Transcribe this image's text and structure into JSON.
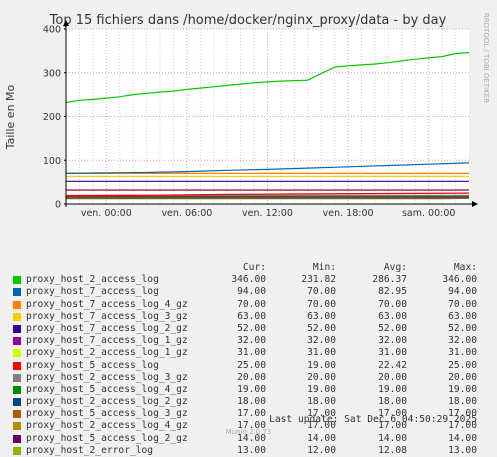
{
  "chart_data": {
    "type": "line",
    "title": "Top 15 fichiers dans /home/docker/nginx_proxy/data - by day",
    "ylabel": "Taille en Mo",
    "xlabel": "",
    "ylim": [
      0,
      400
    ],
    "yticks": [
      0,
      100,
      200,
      300,
      400
    ],
    "xlim": [
      0,
      30
    ],
    "xticks": [
      {
        "x": 3,
        "label": "ven. 00:00"
      },
      {
        "x": 9,
        "label": "ven. 06:00"
      },
      {
        "x": 15,
        "label": "ven. 12:00"
      },
      {
        "x": 21,
        "label": "ven. 18:00"
      },
      {
        "x": 27,
        "label": "sam. 00:00"
      }
    ],
    "grid": true,
    "legend_position": "bottom",
    "series": [
      {
        "name": "proxy_host_2_access_log",
        "color": "#00cc00",
        "cur": "346.00",
        "min": "231.82",
        "avg": "286.37",
        "max": "346.00",
        "points": [
          [
            0,
            232
          ],
          [
            1,
            237
          ],
          [
            2,
            239
          ],
          [
            3,
            242
          ],
          [
            4,
            245
          ],
          [
            5,
            250
          ],
          [
            6,
            253
          ],
          [
            7,
            256
          ],
          [
            8,
            258
          ],
          [
            9,
            262
          ],
          [
            10,
            265
          ],
          [
            11,
            268
          ],
          [
            12,
            271
          ],
          [
            13,
            274
          ],
          [
            14,
            277
          ],
          [
            15,
            279
          ],
          [
            16,
            281
          ],
          [
            17,
            282
          ],
          [
            18,
            283
          ],
          [
            19,
            298
          ],
          [
            20,
            313
          ],
          [
            21,
            316
          ],
          [
            22,
            318
          ],
          [
            23,
            320
          ],
          [
            24,
            323
          ],
          [
            25,
            327
          ],
          [
            26,
            331
          ],
          [
            27,
            334
          ],
          [
            28,
            337
          ],
          [
            29,
            344
          ],
          [
            30,
            346
          ]
        ]
      },
      {
        "name": "proxy_host_7_access_log",
        "color": "#0066b3",
        "cur": "94.00",
        "min": "70.00",
        "avg": "82.95",
        "max": "94.00",
        "points": [
          [
            0,
            70
          ],
          [
            3,
            71
          ],
          [
            6,
            72
          ],
          [
            9,
            74
          ],
          [
            12,
            77
          ],
          [
            15,
            79
          ],
          [
            18,
            82
          ],
          [
            21,
            85
          ],
          [
            24,
            88
          ],
          [
            27,
            91
          ],
          [
            30,
            94
          ]
        ]
      },
      {
        "name": "proxy_host_7_access_log_4_gz",
        "color": "#ff8000",
        "cur": "70.00",
        "min": "70.00",
        "avg": "70.00",
        "max": "70.00",
        "points": [
          [
            0,
            70
          ],
          [
            30,
            70
          ]
        ]
      },
      {
        "name": "proxy_host_7_access_log_3_gz",
        "color": "#ffcc00",
        "cur": "63.00",
        "min": "63.00",
        "avg": "63.00",
        "max": "63.00",
        "points": [
          [
            0,
            63
          ],
          [
            30,
            63
          ]
        ]
      },
      {
        "name": "proxy_host_7_access_log_2_gz",
        "color": "#330099",
        "cur": "52.00",
        "min": "52.00",
        "avg": "52.00",
        "max": "52.00",
        "points": [
          [
            0,
            52
          ],
          [
            30,
            52
          ]
        ]
      },
      {
        "name": "proxy_host_7_access_log_1_gz",
        "color": "#990099",
        "cur": "32.00",
        "min": "32.00",
        "avg": "32.00",
        "max": "32.00",
        "points": [
          [
            0,
            32
          ],
          [
            30,
            32
          ]
        ]
      },
      {
        "name": "proxy_host_2_access_log_1_gz",
        "color": "#ccff00",
        "cur": "31.00",
        "min": "31.00",
        "avg": "31.00",
        "max": "31.00",
        "points": [
          [
            0,
            31
          ],
          [
            30,
            31
          ]
        ]
      },
      {
        "name": "proxy_host_5_access_log",
        "color": "#ff0000",
        "cur": "25.00",
        "min": "19.00",
        "avg": "22.42",
        "max": "25.00",
        "points": [
          [
            0,
            19
          ],
          [
            6,
            20
          ],
          [
            12,
            22
          ],
          [
            18,
            23
          ],
          [
            24,
            24
          ],
          [
            30,
            25
          ]
        ]
      },
      {
        "name": "proxy_host_2_access_log_3_gz",
        "color": "#808080",
        "cur": "20.00",
        "min": "20.00",
        "avg": "20.00",
        "max": "20.00",
        "points": [
          [
            0,
            20
          ],
          [
            30,
            20
          ]
        ]
      },
      {
        "name": "proxy_host_5_access_log_4_gz",
        "color": "#008f00",
        "cur": "19.00",
        "min": "19.00",
        "avg": "19.00",
        "max": "19.00",
        "points": [
          [
            0,
            19
          ],
          [
            30,
            19
          ]
        ]
      },
      {
        "name": "proxy_host_2_access_log_2_gz",
        "color": "#00487d",
        "cur": "18.00",
        "min": "18.00",
        "avg": "18.00",
        "max": "18.00",
        "points": [
          [
            0,
            18
          ],
          [
            30,
            18
          ]
        ]
      },
      {
        "name": "proxy_host_5_access_log_3_gz",
        "color": "#b35a00",
        "cur": "17.00",
        "min": "17.00",
        "avg": "17.00",
        "max": "17.00",
        "points": [
          [
            0,
            17
          ],
          [
            30,
            17
          ]
        ]
      },
      {
        "name": "proxy_host_2_access_log_4_gz",
        "color": "#b38f00",
        "cur": "17.00",
        "min": "17.00",
        "avg": "17.00",
        "max": "17.00",
        "points": [
          [
            0,
            17
          ],
          [
            30,
            17
          ]
        ]
      },
      {
        "name": "proxy_host_5_access_log_2_gz",
        "color": "#6b006b",
        "cur": "14.00",
        "min": "14.00",
        "avg": "14.00",
        "max": "14.00",
        "points": [
          [
            0,
            14
          ],
          [
            30,
            14
          ]
        ]
      },
      {
        "name": "proxy_host_2_error_log",
        "color": "#8fb300",
        "cur": "13.00",
        "min": "12.00",
        "avg": "12.08",
        "max": "13.00",
        "points": [
          [
            0,
            12
          ],
          [
            28,
            12
          ],
          [
            30,
            13
          ]
        ]
      }
    ]
  },
  "legend_headers": {
    "cur": "Cur:",
    "min": "Min:",
    "avg": "Avg:",
    "max": "Max:"
  },
  "last_update": "Last update: Sat Dec  6 04:50:29 2025",
  "side_text": "RRDTOOL / TOBI OETIKER",
  "footer": "Munin 2.0.73"
}
